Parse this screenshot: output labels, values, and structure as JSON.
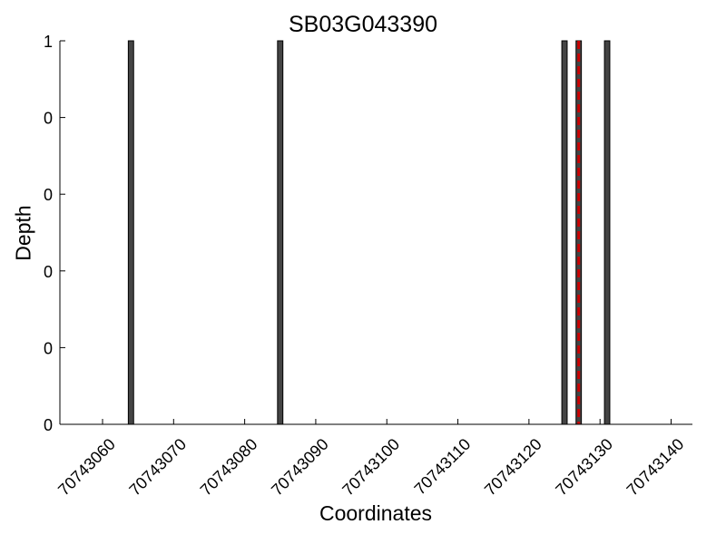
{
  "chart_data": {
    "type": "bar",
    "title": "SB03G043390",
    "xlabel": "Coordinates",
    "ylabel": "Depth",
    "xlim": [
      70743054,
      70743143
    ],
    "ylim": [
      0,
      1
    ],
    "x_ticks": [
      70743060,
      70743070,
      70743080,
      70743090,
      70743100,
      70743110,
      70743120,
      70743130,
      70743140
    ],
    "y_tick_values": [
      0,
      0.2,
      0.4,
      0.6,
      0.8,
      1
    ],
    "y_tick_labels": [
      "0",
      "0",
      "0",
      "0",
      "0",
      "1"
    ],
    "bars": [
      {
        "x": 70743064,
        "value": 1
      },
      {
        "x": 70743085,
        "value": 1
      },
      {
        "x": 70743125,
        "value": 1
      },
      {
        "x": 70743127,
        "value": 1
      },
      {
        "x": 70743131,
        "value": 1
      }
    ],
    "marker_line": {
      "x": 70743127,
      "style": "dashed"
    },
    "grid": false,
    "colors": {
      "bar_fill": "#444444",
      "bar_edge": "#000000",
      "marker": "#cc0000"
    }
  }
}
